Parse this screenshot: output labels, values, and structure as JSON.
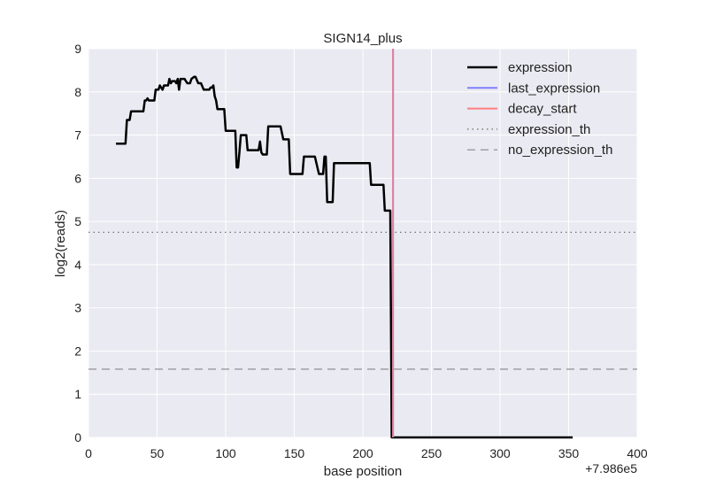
{
  "chart_data": {
    "type": "line",
    "title": "SIGN14_plus",
    "xlabel": "base position",
    "ylabel": "log2(reads)",
    "x_offset_label": "+7.986e5",
    "xlim": [
      0,
      400
    ],
    "ylim": [
      0,
      9
    ],
    "x_ticks": [
      "0",
      "50",
      "100",
      "150",
      "200",
      "250",
      "300",
      "350",
      "400"
    ],
    "y_ticks": [
      "0",
      "1",
      "2",
      "3",
      "4",
      "5",
      "6",
      "7",
      "8",
      "9"
    ],
    "grid": true,
    "legend_position": "top-right",
    "series": [
      {
        "name": "expression",
        "color": "#000000",
        "style": "solid",
        "x": [
          20,
          24,
          25,
          27,
          28,
          30,
          31,
          36,
          37,
          39,
          40,
          41,
          42,
          43,
          44,
          48,
          49,
          51,
          52,
          54,
          55,
          57,
          58,
          59,
          60,
          61,
          63,
          64,
          65,
          66,
          67,
          68,
          69,
          70,
          72,
          74,
          75,
          77,
          78,
          80,
          82,
          84,
          86,
          88,
          89,
          90,
          91,
          92,
          93,
          94,
          97,
          98,
          99,
          100,
          102,
          104,
          107,
          108,
          109,
          110,
          111,
          112,
          114,
          115,
          116,
          117,
          118,
          119,
          123,
          124,
          125,
          126,
          127,
          128,
          129,
          130,
          131,
          133,
          134,
          135,
          140,
          142,
          143,
          144,
          145,
          146,
          147,
          152,
          155,
          156,
          157,
          160,
          163,
          164,
          165,
          168,
          170,
          171,
          172,
          173,
          174,
          175,
          178,
          179,
          181,
          183,
          186,
          190,
          200,
          205,
          206,
          208,
          210,
          215,
          216,
          218,
          219,
          220,
          221,
          222,
          250,
          300,
          330,
          353
        ],
        "y": [
          6.8,
          6.8,
          6.8,
          6.8,
          7.35,
          7.35,
          7.55,
          7.55,
          7.55,
          7.55,
          7.55,
          7.8,
          7.8,
          7.85,
          7.8,
          7.8,
          8.05,
          8.05,
          8.15,
          8.05,
          8.15,
          8.15,
          8.15,
          8.3,
          8.2,
          8.25,
          8.25,
          8.2,
          8.3,
          8.05,
          8.3,
          8.3,
          8.3,
          8.3,
          8.2,
          8.2,
          8.3,
          8.35,
          8.35,
          8.2,
          8.2,
          8.05,
          8.05,
          8.05,
          8.1,
          8.1,
          8.15,
          7.9,
          7.8,
          7.6,
          7.6,
          7.6,
          7.6,
          7.1,
          7.1,
          7.1,
          7.1,
          6.25,
          6.25,
          6.6,
          7.0,
          7.0,
          7.0,
          7.0,
          6.65,
          6.65,
          6.65,
          6.65,
          6.65,
          6.65,
          6.85,
          6.6,
          6.55,
          6.55,
          6.55,
          6.55,
          7.2,
          7.2,
          7.2,
          7.2,
          7.2,
          6.9,
          6.9,
          6.9,
          6.9,
          6.9,
          6.1,
          6.1,
          6.1,
          6.1,
          6.5,
          6.5,
          6.5,
          6.5,
          6.5,
          6.1,
          6.1,
          6.1,
          6.5,
          6.5,
          5.45,
          5.45,
          5.45,
          6.35,
          6.35,
          6.35,
          6.35,
          6.35,
          6.35,
          6.35,
          5.85,
          5.85,
          5.85,
          5.85,
          5.25,
          5.25,
          5.25,
          5.25,
          0,
          0,
          0,
          0,
          0,
          0
        ]
      },
      {
        "name": "last_expression",
        "color": "#8080ff",
        "style": "solid",
        "x": [
          222,
          222
        ],
        "y": [
          0,
          9
        ]
      },
      {
        "name": "decay_start",
        "color": "#ff7f7f",
        "style": "solid",
        "x": [
          222,
          222
        ],
        "y": [
          0,
          9
        ]
      },
      {
        "name": "expression_th",
        "color": "#666666",
        "style": "dotted",
        "y_value": 4.75
      },
      {
        "name": "no_expression_th",
        "color": "#888888",
        "style": "dashed",
        "y_value": 1.58
      }
    ]
  }
}
